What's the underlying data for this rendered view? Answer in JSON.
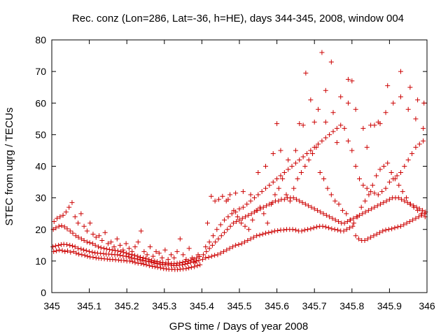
{
  "chart_data": {
    "type": "scatter",
    "title": "Rec. conz (Lon=286, Lat=-36, h=HE), days 344-345, 2008, window 004",
    "xlabel": "GPS time / Days of year 2008",
    "ylabel": "STEC from uqrg / TECUs",
    "xlim": [
      345,
      346
    ],
    "ylim": [
      0,
      80
    ],
    "x_ticks": [
      "345",
      "345.1",
      "345.2",
      "345.3",
      "345.4",
      "345.5",
      "345.6",
      "345.7",
      "345.8",
      "345.9",
      "346"
    ],
    "y_ticks": [
      "0",
      "10",
      "20",
      "30",
      "40",
      "50",
      "60",
      "70",
      "80"
    ],
    "grid": false,
    "legend": "none",
    "marker": "plus",
    "color": "#cc0000",
    "series": [
      {
        "x": [
          345.005,
          345.012,
          345.02,
          345.028,
          345.035,
          345.042,
          345.05,
          345.058,
          345.065,
          345.072,
          345.08,
          345.088,
          345.095,
          345.102,
          345.11,
          345.118,
          345.125,
          345.132,
          345.14,
          345.148,
          345.155,
          345.162,
          345.17,
          345.178,
          345.185,
          345.192,
          345.2,
          345.208,
          345.215,
          345.222,
          345.23,
          345.238,
          345.245,
          345.252,
          345.26,
          345.268,
          345.275,
          345.282,
          345.29,
          345.298,
          345.305,
          345.312,
          345.32,
          345.328,
          345.335,
          345.342,
          345.35,
          345.358,
          345.365,
          345.372,
          345.38,
          345.388,
          345.395
        ],
        "values": [
          13,
          13.2,
          13.5,
          13.3,
          13,
          13.2,
          12.8,
          13,
          12.5,
          12.2,
          12,
          11.8,
          11.5,
          11.3,
          11.2,
          11,
          10.9,
          10.8,
          10.7,
          10.6,
          10.5,
          10.5,
          10.4,
          10.3,
          10.2,
          10.2,
          10,
          10,
          9.8,
          9.5,
          9.3,
          9.2,
          9,
          8.8,
          8.5,
          8.3,
          8.2,
          8,
          7.8,
          7.6,
          7.5,
          7.4,
          7.4,
          7.3,
          7.3,
          7.4,
          7.5,
          7.6,
          7.8,
          8,
          8.2,
          8.5,
          8.8
        ]
      },
      {
        "x": [
          345.003,
          345.01,
          345.018,
          345.025,
          345.032,
          345.04,
          345.048,
          345.055,
          345.062,
          345.07,
          345.078,
          345.085,
          345.092,
          345.1,
          345.108,
          345.115,
          345.122,
          345.13,
          345.138,
          345.145,
          345.152,
          345.16,
          345.168,
          345.175,
          345.182,
          345.19,
          345.198,
          345.205,
          345.212,
          345.22,
          345.228,
          345.235,
          345.242,
          345.25,
          345.258,
          345.265,
          345.272,
          345.28,
          345.288,
          345.295,
          345.302,
          345.31,
          345.318,
          345.325,
          345.332,
          345.34,
          345.348,
          345.355,
          345.362,
          345.37,
          345.378,
          345.385,
          345.392
        ],
        "values": [
          14.5,
          14.8,
          15,
          15.2,
          15.3,
          15.2,
          15,
          14.8,
          14.5,
          14,
          13.8,
          13.5,
          13.3,
          13,
          12.8,
          12.6,
          12.5,
          12.4,
          12.3,
          12.2,
          12.2,
          12.1,
          12,
          12,
          11.8,
          11.6,
          11.5,
          11.3,
          11,
          10.8,
          10.6,
          10.4,
          10.2,
          10,
          9.8,
          9.6,
          9.4,
          9.2,
          9,
          8.9,
          8.8,
          8.8,
          8.7,
          8.6,
          8.6,
          8.7,
          8.8,
          9,
          9.2,
          9.5,
          9.8,
          10,
          10.2
        ]
      },
      {
        "x": [
          345.004,
          345.011,
          345.019,
          345.026,
          345.034,
          345.041,
          345.049,
          345.056,
          345.064,
          345.071,
          345.079,
          345.086,
          345.094,
          345.101,
          345.109,
          345.116,
          345.124,
          345.131,
          345.139,
          345.146,
          345.154,
          345.161,
          345.169,
          345.176,
          345.184,
          345.191,
          345.199,
          345.206,
          345.214,
          345.221,
          345.229,
          345.236,
          345.244,
          345.251,
          345.259,
          345.266,
          345.274,
          345.281,
          345.289,
          345.296,
          345.304,
          345.311,
          345.319,
          345.326,
          345.334,
          345.341,
          345.349,
          345.356,
          345.364,
          345.371,
          345.379,
          345.386,
          345.394
        ],
        "values": [
          20,
          20.5,
          21,
          21.2,
          20.8,
          20.2,
          19.5,
          18.8,
          18,
          17.5,
          17,
          16.5,
          16,
          15.8,
          15.5,
          15,
          14.5,
          14.2,
          14,
          13.8,
          13.6,
          13.5,
          13.3,
          13.2,
          13,
          12.8,
          12.5,
          12.2,
          12,
          11.8,
          11.5,
          11.2,
          11,
          10.8,
          10.5,
          10.2,
          10,
          9.8,
          9.6,
          9.5,
          9.4,
          9.3,
          9.2,
          9.2,
          9.3,
          9.4,
          9.6,
          9.8,
          10,
          10.3,
          10.6,
          11,
          11.4
        ]
      },
      {
        "x": [
          345.006,
          345.014,
          345.022,
          345.03,
          345.038,
          345.046,
          345.054,
          345.062,
          345.07,
          345.078,
          345.086,
          345.094,
          345.102,
          345.11,
          345.118,
          345.126,
          345.134,
          345.142,
          345.15,
          345.158,
          345.166,
          345.174,
          345.182,
          345.19,
          345.198,
          345.206,
          345.214,
          345.222,
          345.23,
          345.238,
          345.246,
          345.254,
          345.262,
          345.27,
          345.278,
          345.286,
          345.294,
          345.302,
          345.31,
          345.318,
          345.326,
          345.334,
          345.342,
          345.35,
          345.358,
          345.366,
          345.374,
          345.382,
          345.39
        ],
        "values": [
          22.5,
          23.5,
          24,
          24.5,
          25.5,
          27,
          28.5,
          24,
          22,
          25,
          21,
          19.5,
          22,
          18.5,
          17.5,
          18,
          16.5,
          19,
          15.5,
          16,
          14.5,
          17,
          15,
          13.5,
          15.5,
          14,
          13,
          14.5,
          16,
          19.5,
          13,
          12,
          14.5,
          11.5,
          13,
          12.5,
          11,
          13.5,
          10.5,
          12,
          11,
          13,
          17,
          12,
          10.5,
          14,
          11,
          9.5,
          12
        ]
      },
      {
        "x": [
          345.402,
          345.41,
          345.418,
          345.426,
          345.434,
          345.442,
          345.45,
          345.458,
          345.466,
          345.474,
          345.482,
          345.49,
          345.498,
          345.506,
          345.514,
          345.522,
          345.53,
          345.538,
          345.546,
          345.554,
          345.562,
          345.57,
          345.578,
          345.586,
          345.594,
          345.602,
          345.61,
          345.618,
          345.626,
          345.634,
          345.642,
          345.65,
          345.658,
          345.666,
          345.674,
          345.682,
          345.69,
          345.698,
          345.706,
          345.714,
          345.722,
          345.73,
          345.738,
          345.746,
          345.754,
          345.762,
          345.77,
          345.778,
          345.786,
          345.794,
          345.802,
          345.81,
          345.818,
          345.826,
          345.834,
          345.842,
          345.85,
          345.858,
          345.866,
          345.874,
          345.882,
          345.89,
          345.898,
          345.906,
          345.914,
          345.922,
          345.93,
          345.938,
          345.946,
          345.954,
          345.962,
          345.97,
          345.978,
          345.986,
          345.994
        ],
        "values": [
          10.5,
          11,
          11.2,
          11.5,
          11.8,
          12,
          12.5,
          13,
          13.5,
          14,
          14.5,
          15,
          15.2,
          15.5,
          16,
          16.5,
          17,
          17.5,
          18,
          18.2,
          18.5,
          18.8,
          19,
          19.2,
          19.5,
          19.6,
          19.8,
          19.8,
          20,
          20,
          20,
          19.8,
          19.5,
          19.5,
          19.8,
          20,
          20.2,
          20.5,
          20.8,
          21,
          21,
          20.8,
          20.5,
          20.2,
          20,
          19.8,
          19.5,
          19.5,
          20,
          20.5,
          21,
          18,
          17,
          16.5,
          16.5,
          17,
          17.5,
          18,
          18.5,
          19,
          19.5,
          19.8,
          20,
          20.2,
          20.5,
          20.8,
          21,
          21.5,
          22,
          22.5,
          23,
          23.5,
          24,
          24.5,
          25
        ]
      },
      {
        "x": [
          345.404,
          345.412,
          345.42,
          345.428,
          345.436,
          345.444,
          345.452,
          345.46,
          345.468,
          345.476,
          345.484,
          345.492,
          345.5,
          345.508,
          345.516,
          345.524,
          345.532,
          345.54,
          345.548,
          345.556,
          345.564,
          345.572,
          345.58,
          345.588,
          345.596,
          345.604,
          345.612,
          345.62,
          345.628,
          345.636,
          345.644,
          345.652,
          345.66,
          345.668,
          345.676,
          345.684,
          345.692,
          345.7,
          345.708,
          345.716,
          345.724,
          345.732,
          345.74,
          345.748,
          345.756,
          345.764,
          345.772,
          345.78,
          345.788,
          345.796,
          345.804,
          345.812,
          345.82,
          345.828,
          345.836,
          345.844,
          345.852,
          345.86,
          345.868,
          345.876,
          345.884,
          345.892,
          345.9,
          345.908,
          345.916,
          345.924,
          345.932,
          345.94,
          345.948,
          345.956,
          345.964,
          345.972,
          345.98,
          345.988,
          345.996
        ],
        "values": [
          12,
          13,
          14,
          15,
          16,
          17,
          18,
          19,
          20,
          21,
          22,
          22.5,
          23,
          23.5,
          24,
          24.5,
          25,
          25.5,
          26,
          26.5,
          27,
          27.5,
          28,
          28.5,
          29,
          29,
          29.5,
          29.5,
          30,
          30,
          30,
          29.5,
          29,
          28.5,
          28,
          27.5,
          27,
          26.5,
          26,
          25.5,
          25,
          24.5,
          24,
          23.5,
          23,
          22.5,
          22,
          22,
          22.5,
          23,
          23.5,
          24,
          24.5,
          25,
          25.5,
          26,
          26.5,
          27,
          27.5,
          28,
          28.5,
          29,
          29.5,
          30,
          30,
          30,
          29.5,
          29,
          28.5,
          28,
          27.5,
          27,
          26.5,
          26,
          25.5
        ]
      },
      {
        "x": [
          345.41,
          345.42,
          345.43,
          345.44,
          345.45,
          345.46,
          345.47,
          345.48,
          345.49,
          345.5,
          345.51,
          345.52,
          345.53,
          345.54,
          345.55,
          345.56,
          345.57,
          345.58,
          345.59,
          345.6,
          345.61,
          345.62,
          345.63,
          345.64,
          345.65,
          345.66,
          345.67,
          345.68,
          345.69,
          345.7,
          345.71,
          345.72,
          345.73,
          345.74,
          345.75,
          345.76,
          345.77,
          345.78,
          345.79,
          345.8,
          345.81,
          345.82,
          345.83,
          345.84,
          345.85,
          345.86,
          345.87,
          345.88,
          345.89,
          345.9,
          345.91,
          345.92,
          345.93,
          345.94,
          345.95,
          345.96,
          345.97,
          345.98,
          345.99
        ],
        "values": [
          14.5,
          16,
          18,
          20,
          21.5,
          23,
          24,
          25,
          25.5,
          26.5,
          27,
          28,
          29,
          30,
          31,
          32,
          33,
          34,
          35,
          36,
          37,
          38,
          39,
          40,
          41,
          42,
          43,
          44,
          45,
          46,
          47,
          48,
          49,
          50,
          51,
          52,
          53,
          52,
          48,
          45,
          40,
          36,
          34,
          33,
          32,
          31.5,
          31,
          32,
          33,
          35,
          36,
          37,
          38,
          40,
          42,
          44,
          46,
          47,
          48
        ]
      },
      {
        "x": [
          345.415,
          345.425,
          345.435,
          345.445,
          345.455,
          345.465,
          345.475,
          345.485,
          345.495,
          345.505,
          345.515,
          345.525,
          345.535,
          345.545,
          345.555,
          345.565,
          345.575,
          345.585,
          345.595,
          345.605,
          345.615,
          345.625,
          345.635,
          345.645,
          345.655,
          345.665,
          345.675,
          345.685,
          345.695,
          345.705,
          345.715,
          345.725,
          345.735,
          345.745,
          345.755,
          345.765,
          345.775,
          345.785,
          345.795,
          345.805,
          345.815,
          345.825,
          345.835,
          345.845,
          345.855,
          345.865,
          345.875,
          345.885,
          345.895,
          345.905,
          345.915,
          345.925,
          345.935,
          345.945,
          345.955,
          345.965,
          345.975,
          345.985,
          345.995
        ],
        "values": [
          22,
          30.5,
          29,
          29.5,
          30.5,
          29,
          31,
          26,
          24,
          22,
          21,
          20,
          23,
          26,
          27,
          25,
          22,
          28,
          31,
          33,
          36,
          31,
          29,
          33,
          36,
          38,
          40,
          42,
          44,
          46,
          38,
          36,
          33,
          31,
          29,
          28,
          26,
          25,
          23,
          22,
          24,
          27,
          29,
          31,
          34,
          37,
          39,
          40,
          41,
          38,
          36,
          34,
          32,
          30,
          28,
          27,
          26,
          25,
          24
        ]
      },
      {
        "x": [
          345.47,
          345.49,
          345.51,
          345.53,
          345.55,
          345.57,
          345.59,
          345.61,
          345.63,
          345.65,
          345.67,
          345.69,
          345.71,
          345.73,
          345.75,
          345.77,
          345.79,
          345.81,
          345.83,
          345.85,
          345.87,
          345.89,
          345.91,
          345.93,
          345.95,
          345.97,
          345.99
        ],
        "values": [
          29.5,
          31.5,
          32,
          31,
          38,
          40,
          44,
          45,
          42,
          45,
          53,
          61,
          58,
          54,
          57,
          62,
          60,
          58,
          52,
          53,
          54,
          57,
          60,
          62,
          58,
          55,
          52
        ]
      },
      {
        "x": [
          345.72,
          345.745,
          345.677,
          345.79,
          345.84,
          345.875,
          345.895,
          345.93,
          345.955,
          345.975,
          345.992,
          345.6,
          345.66,
          345.7,
          345.73,
          345.76,
          345.8,
          345.86
        ],
        "values": [
          76,
          73,
          69.5,
          67.5,
          46,
          53.5,
          65.5,
          70,
          65,
          61,
          60,
          53.5,
          53.5,
          54,
          64,
          47.5,
          67,
          53
        ]
      }
    ]
  }
}
